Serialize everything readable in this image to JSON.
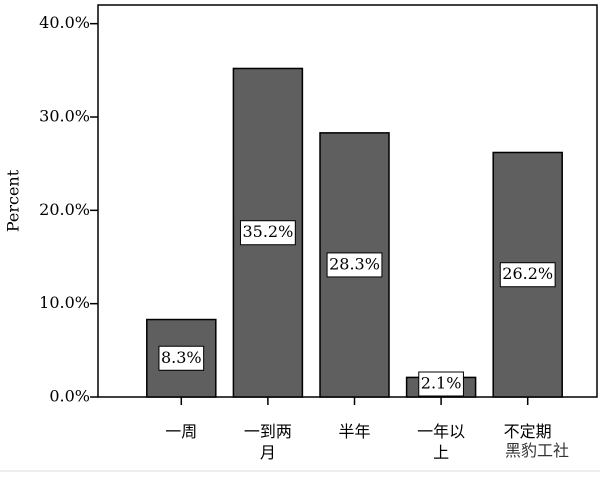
{
  "chart_data": {
    "type": "bar",
    "y_label": "Percent",
    "watermark": "黑豹工社",
    "categories": [
      "一周",
      "一到两月",
      "半年",
      "一年以上",
      "不定期"
    ],
    "values": [
      8.3,
      35.2,
      28.3,
      2.1,
      26.2
    ],
    "value_labels": [
      "8.3%",
      "35.2%",
      "28.3%",
      "2.1%",
      "26.2%"
    ],
    "color": "#5f5f5f",
    "ylim": [
      0,
      42
    ],
    "yticks": [
      {
        "value": 0,
        "label": "0.0%"
      },
      {
        "value": 10,
        "label": "10.0%"
      },
      {
        "value": 20,
        "label": "20.0%"
      },
      {
        "value": 30,
        "label": "30.0%"
      },
      {
        "value": 40,
        "label": "40.0%"
      }
    ]
  }
}
